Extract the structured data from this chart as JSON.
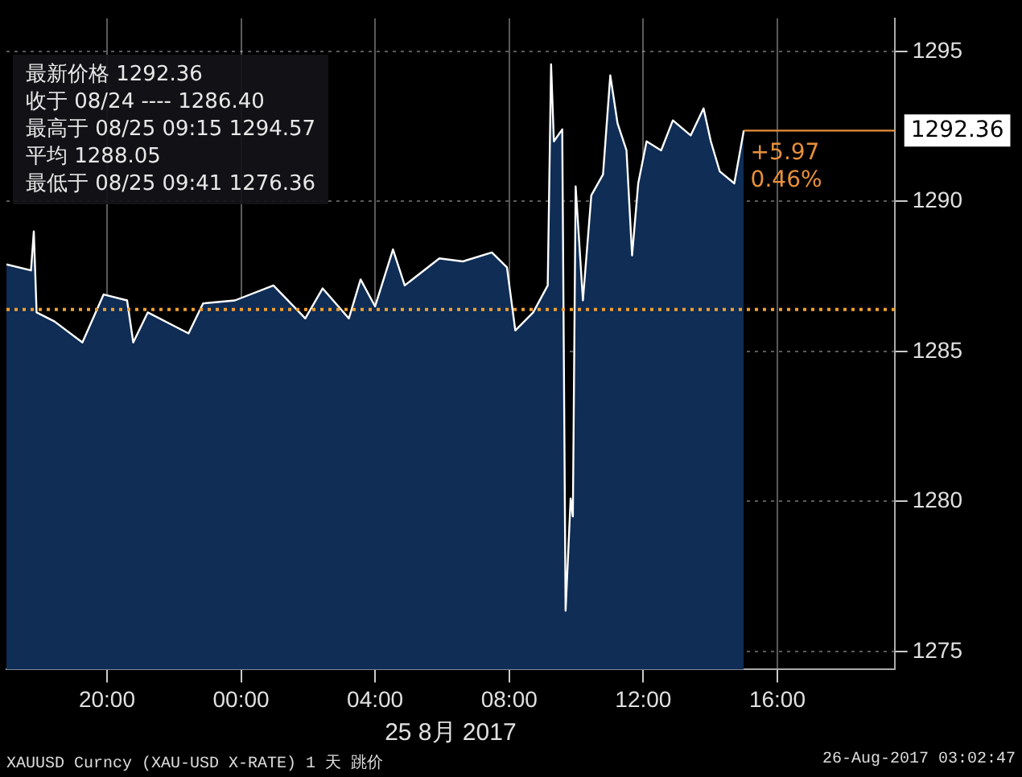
{
  "chart_data": {
    "type": "area",
    "xlabel": "25 8月 2017",
    "x": [
      "2017-08-24T17:00",
      "2017-08-24T17:44",
      "2017-08-24T17:49",
      "2017-08-24T17:54",
      "2017-08-24T18:26",
      "2017-08-24T19:16",
      "2017-08-24T19:54",
      "2017-08-24T20:36",
      "2017-08-24T20:47",
      "2017-08-24T21:13",
      "2017-08-24T22:26",
      "2017-08-24T22:52",
      "2017-08-24T23:49",
      "2017-08-25T00:58",
      "2017-08-25T01:55",
      "2017-08-25T02:26",
      "2017-08-25T03:13",
      "2017-08-25T03:34",
      "2017-08-25T04:00",
      "2017-08-25T04:32",
      "2017-08-25T04:53",
      "2017-08-25T05:55",
      "2017-08-25T06:37",
      "2017-08-25T07:29",
      "2017-08-25T07:56",
      "2017-08-25T08:11",
      "2017-08-25T08:43",
      "2017-08-25T09:09",
      "2017-08-25T09:15",
      "2017-08-25T09:20",
      "2017-08-25T09:35",
      "2017-08-25T09:41",
      "2017-08-25T09:50",
      "2017-08-25T09:54",
      "2017-08-25T09:59",
      "2017-08-25T10:12",
      "2017-08-25T10:27",
      "2017-08-25T10:48",
      "2017-08-25T11:01",
      "2017-08-25T11:14",
      "2017-08-25T11:30",
      "2017-08-25T11:40",
      "2017-08-25T11:51",
      "2017-08-25T12:06",
      "2017-08-25T12:32",
      "2017-08-25T12:53",
      "2017-08-25T13:25",
      "2017-08-25T13:48",
      "2017-08-25T14:01",
      "2017-08-25T14:17",
      "2017-08-25T14:43",
      "2017-08-25T15:00"
    ],
    "series": [
      {
        "color": "#ffffff",
        "values": [
          1287.9,
          1287.7,
          1289.0,
          1286.3,
          1286.0,
          1285.3,
          1286.9,
          1286.7,
          1285.3,
          1286.3,
          1285.6,
          1286.6,
          1286.7,
          1287.2,
          1286.1,
          1287.1,
          1286.1,
          1287.4,
          1286.5,
          1288.4,
          1287.2,
          1288.1,
          1288.0,
          1288.3,
          1287.8,
          1285.7,
          1286.3,
          1287.2,
          1294.57,
          1292.0,
          1292.4,
          1276.36,
          1280.1,
          1279.5,
          1290.5,
          1286.7,
          1290.2,
          1290.9,
          1294.2,
          1292.6,
          1291.7,
          1288.2,
          1290.6,
          1292.0,
          1291.7,
          1292.7,
          1292.2,
          1293.1,
          1292.0,
          1291.0,
          1290.6,
          1292.36
        ]
      }
    ],
    "xlim": [
      "2017-08-24T17:00",
      "2017-08-25T19:30"
    ],
    "ylim": [
      1274.4,
      1296.1
    ],
    "xticks": [
      {
        "value": "2017-08-24T20:00",
        "label": "20:00"
      },
      {
        "value": "2017-08-25T00:00",
        "label": "00:00"
      },
      {
        "value": "2017-08-25T04:00",
        "label": "04:00"
      },
      {
        "value": "2017-08-25T08:00",
        "label": "08:00"
      },
      {
        "value": "2017-08-25T12:00",
        "label": "12:00"
      },
      {
        "value": "2017-08-25T16:00",
        "label": "16:00"
      }
    ],
    "yticks": [
      1275,
      1280,
      1285,
      1290,
      1295
    ],
    "grid": true,
    "legend": false,
    "ref_lines": [
      {
        "axis": "y",
        "value": 1286.4,
        "color": "#f0a030",
        "line_style": "dotted"
      },
      {
        "axis": "y",
        "value": 1292.36,
        "label": "1292.36",
        "color": "#e8903a",
        "line_style": "solid"
      }
    ],
    "annotations": [
      "最新价格 1292.36",
      "收于 08/24 ---- 1286.40",
      "最高于 08/25 09:15 1294.57",
      "平均 1288.05",
      "最低于 08/25 09:41 1276.36",
      {
        "text": "+5.97",
        "x": "2017-08-25T15:12",
        "y": 1291.6
      },
      {
        "text": "0.46%",
        "x": "2017-08-25T15:12",
        "y": 1290.7
      },
      "XAUUSD Curncy (XAU-USD X-RATE) 1 天  跳价",
      "26-Aug-2017 03:02:47"
    ]
  }
}
